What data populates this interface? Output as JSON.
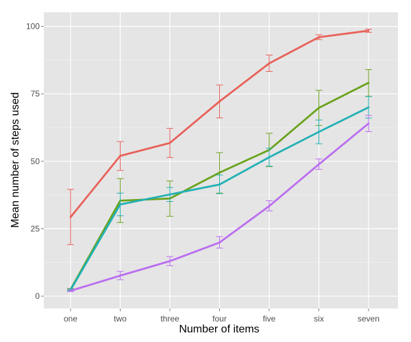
{
  "chart_data": {
    "type": "line",
    "title": "",
    "xlabel": "Number of items",
    "ylabel": "Mean number of steps used",
    "categories": [
      "one",
      "two",
      "three",
      "four",
      "five",
      "six",
      "seven"
    ],
    "ylim": [
      -5,
      105
    ],
    "yticks": [
      0,
      25,
      50,
      75,
      100
    ],
    "grid": true,
    "legend": "none",
    "series": [
      {
        "color": "#e8625a",
        "values": [
          29.3,
          52.0,
          56.8,
          72.2,
          86.3,
          96.0,
          98.4
        ],
        "err_low": [
          19.1,
          46.6,
          51.4,
          66.1,
          83.3,
          95.1,
          97.8
        ],
        "err_high": [
          39.6,
          57.3,
          62.2,
          78.3,
          89.4,
          96.9,
          99.0
        ]
      },
      {
        "color": "#6aa31c",
        "values": [
          2.5,
          35.4,
          36.2,
          45.8,
          54.2,
          69.8,
          79.1
        ],
        "err_low": [
          2.2,
          27.3,
          29.6,
          38.2,
          48.0,
          63.3,
          74.1
        ],
        "err_high": [
          2.8,
          43.6,
          42.7,
          53.2,
          60.4,
          76.3,
          84.0
        ]
      },
      {
        "color": "#22b1b5",
        "values": [
          2.3,
          34.0,
          37.7,
          41.4,
          51.5,
          60.9,
          70.0
        ],
        "err_low": [
          2.0,
          29.8,
          35.1,
          38.0,
          48.2,
          56.5,
          66.0
        ],
        "err_high": [
          2.6,
          38.2,
          40.3,
          44.9,
          54.8,
          65.3,
          74.0
        ]
      },
      {
        "color": "#bb6ef0",
        "values": [
          2.0,
          7.6,
          13.0,
          19.9,
          33.4,
          48.9,
          64.0
        ],
        "err_low": [
          1.7,
          6.1,
          11.3,
          17.8,
          31.6,
          47.0,
          61.0
        ],
        "err_high": [
          2.3,
          9.2,
          14.7,
          22.1,
          35.4,
          50.9,
          67.0
        ]
      }
    ]
  }
}
